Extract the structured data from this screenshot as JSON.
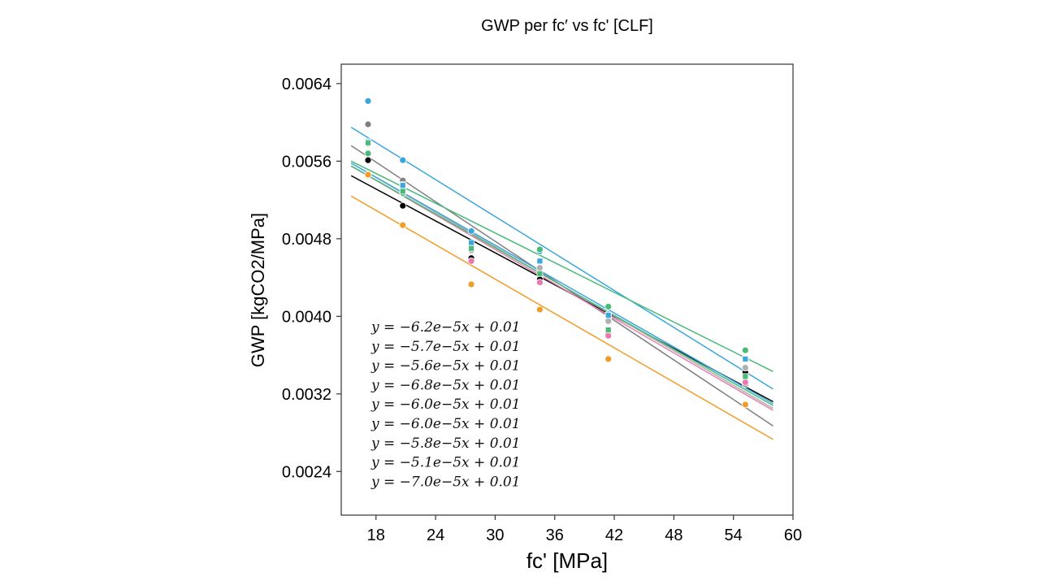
{
  "chart_data": {
    "type": "scatter",
    "title": "GWP per fc′ vs fc' [CLF]",
    "xlabel": "fc' [MPa]",
    "ylabel": "GWP [kgCO2/MPa]",
    "xlim": [
      14.5,
      60
    ],
    "ylim": [
      0.00195,
      0.0066
    ],
    "xticks": [
      18,
      24,
      30,
      36,
      42,
      48,
      54,
      60
    ],
    "yticks": [
      0.0024,
      0.0032,
      0.004,
      0.0048,
      0.0056,
      0.0064
    ],
    "ytick_labels": [
      "0.0024",
      "0.0032",
      "0.0040",
      "0.0048",
      "0.0056",
      "0.0064"
    ],
    "x": [
      17.2,
      20.7,
      27.6,
      34.5,
      41.4,
      55.2
    ],
    "fit_x_range": [
      15.5,
      58
    ],
    "series": [
      {
        "color": "#3aa6dd",
        "marker": "circle",
        "y": [
          0.00622,
          0.00561,
          0.00488,
          0.00467,
          0.00402,
          0.00356
        ],
        "fit": [
          0.00595,
          0.00325
        ]
      },
      {
        "color": "#7f7f7f",
        "marker": "circle",
        "y": [
          0.00598,
          0.0054,
          0.00473,
          0.00441,
          0.00398,
          0.0033
        ],
        "fit": [
          0.00576,
          0.00287
        ]
      },
      {
        "color": "#4ab97a",
        "marker": "circle",
        "y": [
          0.00568,
          0.00527,
          0.00472,
          0.00469,
          0.0041,
          0.00365
        ],
        "fit": [
          0.0056,
          0.00343
        ]
      },
      {
        "color": "#000000",
        "marker": "circle",
        "y": [
          0.00561,
          0.00514,
          0.0046,
          0.00438,
          0.00382,
          0.00342
        ],
        "fit": [
          0.00545,
          0.00312
        ]
      },
      {
        "color": "#f39c24",
        "marker": "circle",
        "y": [
          0.00546,
          0.00494,
          0.00433,
          0.00407,
          0.00356,
          0.00309
        ],
        "fit": [
          0.00524,
          0.00273
        ]
      },
      {
        "color": "#e87ab0",
        "marker": "circle",
        "y": [
          0.0058,
          0.00531,
          0.00457,
          0.00435,
          0.0038,
          0.00332
        ],
        "fit": [
          0.00555,
          0.00303
        ]
      },
      {
        "color": "#b0b0b0",
        "marker": "circle",
        "y": [
          0.00578,
          0.00536,
          0.00468,
          0.0045,
          0.00395,
          0.00347
        ],
        "fit": [
          0.00558,
          0.00305
        ]
      },
      {
        "color": "#3aa6dd",
        "marker": "square",
        "y": [
          0.0058,
          0.00535,
          0.00476,
          0.00457,
          0.00401,
          0.00356
        ],
        "fit": [
          0.00558,
          0.0031
        ]
      },
      {
        "color": "#4ab97a",
        "marker": "square",
        "y": [
          0.00579,
          0.00529,
          0.0047,
          0.00444,
          0.00386,
          0.00338
        ],
        "fit": [
          0.00555,
          0.00308
        ]
      }
    ],
    "equations": [
      "y = −6.2e−5x + 0.01",
      "y = −5.7e−5x + 0.01",
      "y = −5.6e−5x + 0.01",
      "y = −6.8e−5x + 0.01",
      "y = −6.0e−5x + 0.01",
      "y = −6.0e−5x + 0.01",
      "y = −5.8e−5x + 0.01",
      "y = −5.1e−5x + 0.01",
      "y = −7.0e−5x + 0.01"
    ],
    "grid": false
  }
}
